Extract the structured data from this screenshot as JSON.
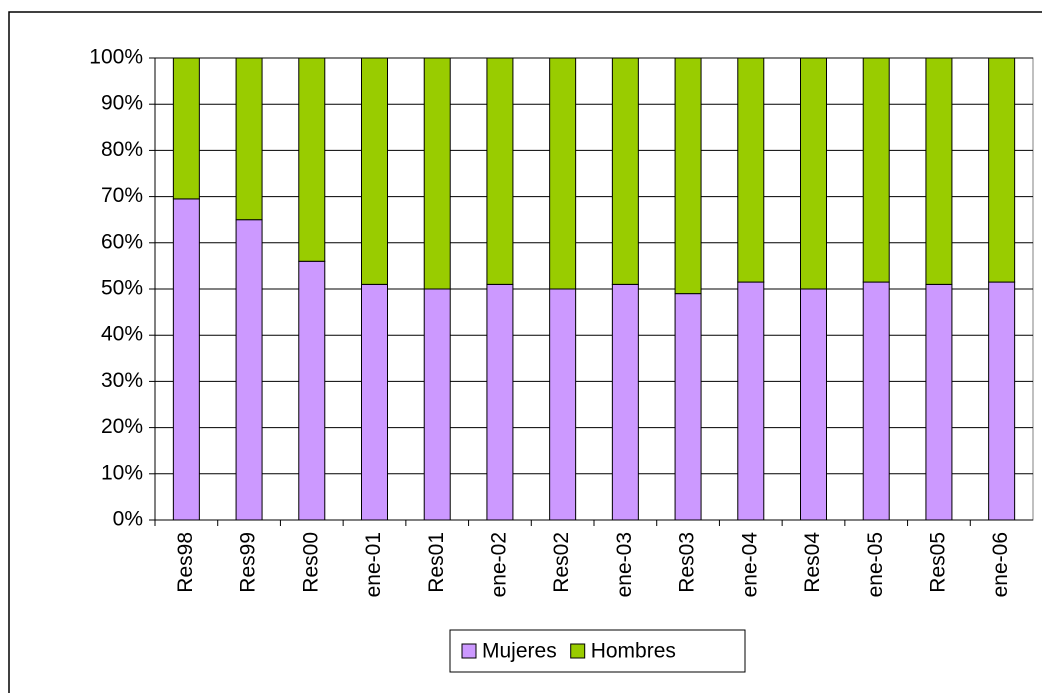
{
  "chart_data": {
    "type": "stacked_bar",
    "categories": [
      "Res98",
      "Res99",
      "Res00",
      "ene-01",
      "Res01",
      "ene-02",
      "Res02",
      "ene-03",
      "Res03",
      "ene-04",
      "Res04",
      "ene-05",
      "Res05",
      "ene-06"
    ],
    "series": [
      {
        "name": "Mujeres",
        "color": "#cc99ff",
        "values": [
          69.5,
          65,
          56,
          51,
          50,
          51,
          50,
          51,
          49,
          51.5,
          50,
          51.5,
          51,
          51.5
        ]
      },
      {
        "name": "Hombres",
        "color": "#99cc00",
        "values": [
          30.5,
          35,
          44,
          49,
          50,
          49,
          50,
          49,
          51,
          48.5,
          50,
          48.5,
          49,
          48.5
        ]
      }
    ],
    "ylim": [
      0,
      100
    ],
    "yticks": [
      {
        "value": 0,
        "label": "0%"
      },
      {
        "value": 10,
        "label": "10%"
      },
      {
        "value": 20,
        "label": "20%"
      },
      {
        "value": 30,
        "label": "30%"
      },
      {
        "value": 40,
        "label": "40%"
      },
      {
        "value": 50,
        "label": "50%"
      },
      {
        "value": 60,
        "label": "60%"
      },
      {
        "value": 70,
        "label": "70%"
      },
      {
        "value": 80,
        "label": "80%"
      },
      {
        "value": 90,
        "label": "90%"
      },
      {
        "value": 100,
        "label": "100%"
      }
    ],
    "grid": true,
    "legend": "bottom"
  }
}
